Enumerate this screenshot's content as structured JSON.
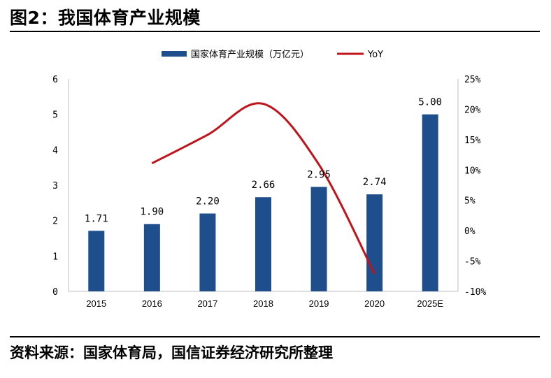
{
  "header": {
    "title": "图2：我国体育产业规模"
  },
  "footer": {
    "source": "资料来源：国家体育局，国信证券经济研究所整理"
  },
  "colors": {
    "bar": "#1f4e8c",
    "line": "#c0141c"
  },
  "chart_data": {
    "type": "bar",
    "categories": [
      "2015",
      "2016",
      "2017",
      "2018",
      "2019",
      "2020",
      "2025E"
    ],
    "ylim": [
      0,
      6
    ],
    "yticks": [
      "0",
      "1",
      "2",
      "3",
      "4",
      "5",
      "6"
    ],
    "y2lim": [
      -10,
      25
    ],
    "y2ticks": [
      "-10%",
      "-5%",
      "0%",
      "5%",
      "10%",
      "15%",
      "20%",
      "25%"
    ],
    "legend": "top-center",
    "series": [
      {
        "name": "国家体育产业规模（万亿元）",
        "type": "bar",
        "values": [
          1.71,
          1.9,
          2.2,
          2.66,
          2.95,
          2.74,
          5.0
        ],
        "labels": [
          "1.71",
          "1.90",
          "2.20",
          "2.66",
          "2.95",
          "2.74",
          "5.00"
        ]
      },
      {
        "name": "YoY",
        "type": "line",
        "axis": "right",
        "x": [
          "2016",
          "2017",
          "2018",
          "2019",
          "2020"
        ],
        "values": [
          11.1,
          15.8,
          20.9,
          10.9,
          -7.1
        ]
      }
    ]
  }
}
